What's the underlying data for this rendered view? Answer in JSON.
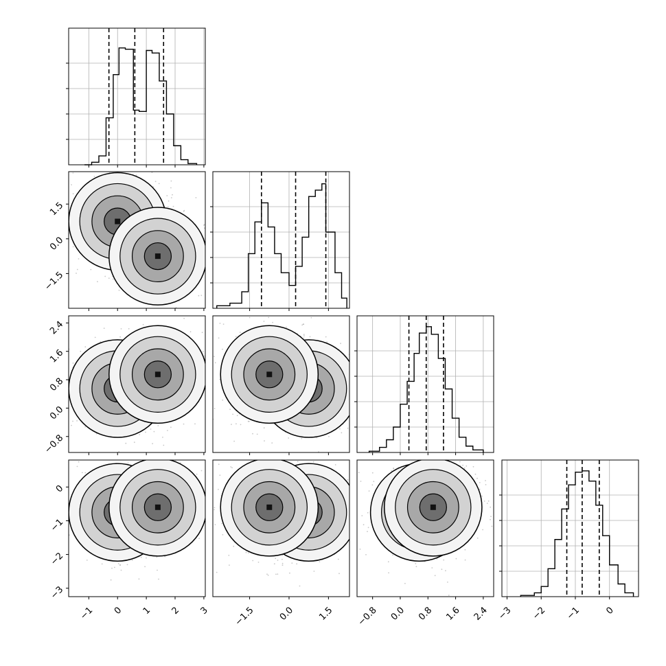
{
  "chart_data": {
    "type": "corner",
    "params": [
      {
        "xticks": [
          -1,
          0,
          1,
          2,
          3
        ],
        "xtick_labels": [
          "−1",
          "0",
          "1",
          "2",
          "3"
        ],
        "xlim": [
          -1.7,
          3.05
        ],
        "yticks": [],
        "quantiles": [
          -0.3,
          0.6,
          1.6
        ],
        "hist_bins": [
          -1.15,
          0.0,
          -0.9,
          0.02,
          -0.65,
          0.07,
          -0.4,
          0.37,
          -0.15,
          0.71,
          0.05,
          0.92,
          0.27,
          0.91,
          0.55,
          0.43,
          0.75,
          0.42,
          1.0,
          0.9,
          1.2,
          0.88,
          1.45,
          0.66,
          1.7,
          0.4,
          1.95,
          0.15,
          2.2,
          0.04,
          2.45,
          0.01,
          2.75
        ]
      },
      {
        "xticks": [
          -1.5,
          0.0,
          1.5
        ],
        "xtick_labels": [
          "−1.5",
          "0.0",
          "1.5"
        ],
        "xlim": [
          -2.9,
          2.3
        ],
        "yticks": [
          -1.5,
          0.0,
          1.5
        ],
        "ytick_labels": [
          "−1.5",
          "0.0",
          "1.5"
        ],
        "ylim": [
          -3.0,
          2.9
        ],
        "quantiles": [
          -1.05,
          0.25,
          1.4
        ],
        "hist_bins": [
          -2.75,
          0.02,
          -2.25,
          0.04,
          -1.8,
          0.13,
          -1.55,
          0.43,
          -1.3,
          0.68,
          -1.05,
          0.83,
          -0.8,
          0.64,
          -0.55,
          0.43,
          -0.3,
          0.28,
          0.0,
          0.18,
          0.25,
          0.33,
          0.5,
          0.56,
          0.75,
          0.88,
          1.0,
          0.93,
          1.25,
          0.98,
          1.4,
          0.6,
          1.75,
          0.28,
          2.0,
          0.08,
          2.2
        ]
      },
      {
        "xticks": [
          -0.8,
          0.0,
          0.8,
          1.6,
          2.4
        ],
        "xtick_labels": [
          "−0.8",
          "0.0",
          "0.8",
          "1.6",
          "2.4"
        ],
        "xlim": [
          -1.25,
          2.7
        ],
        "yticks": [
          -0.8,
          0.0,
          0.8,
          1.6,
          2.4
        ],
        "ytick_labels": [
          "−0.8",
          "0.0",
          "0.8",
          "1.6",
          "2.4"
        ],
        "ylim": [
          -1.25,
          2.6
        ],
        "quantiles": [
          0.25,
          0.75,
          1.25
        ],
        "hist_bins": [
          -0.9,
          0.01,
          -0.6,
          0.04,
          -0.4,
          0.1,
          -0.2,
          0.2,
          0.0,
          0.38,
          0.2,
          0.56,
          0.4,
          0.78,
          0.55,
          0.94,
          0.75,
          0.99,
          0.9,
          0.93,
          1.1,
          0.74,
          1.3,
          0.5,
          1.5,
          0.27,
          1.7,
          0.12,
          1.9,
          0.05,
          2.1,
          0.02,
          2.4
        ]
      },
      {
        "xticks": [
          -3,
          -2,
          -1,
          0
        ],
        "xtick_labels": [
          "−3",
          "−2",
          "−1",
          "0"
        ],
        "xlim": [
          -3.15,
          0.85
        ],
        "yticks": [
          -3,
          -2,
          -1,
          0
        ],
        "ytick_labels": [
          "−3",
          "−2",
          "−1",
          "0"
        ],
        "ylim": [
          -3.25,
          0.8
        ],
        "quantiles": [
          -1.25,
          -0.8,
          -0.3
        ],
        "hist_bins": [
          -2.6,
          0.01,
          -2.2,
          0.03,
          -2.0,
          0.08,
          -1.8,
          0.22,
          -1.6,
          0.45,
          -1.4,
          0.69,
          -1.2,
          0.88,
          -1.0,
          0.98,
          -0.8,
          0.99,
          -0.6,
          0.91,
          -0.4,
          0.72,
          -0.2,
          0.48,
          0.0,
          0.25,
          0.25,
          0.1,
          0.45,
          0.03,
          0.7
        ]
      }
    ],
    "modes": [
      {
        "cx": 0.0,
        "cy": 0.75,
        "cz": 0.55,
        "cw": -0.75
      },
      {
        "cx": 1.4,
        "cy": -0.75,
        "cz": 0.95,
        "cw": -0.6
      }
    ],
    "grid": true,
    "contour_color": "#000000",
    "hist_color": "#000000",
    "density_color": "#000000"
  }
}
